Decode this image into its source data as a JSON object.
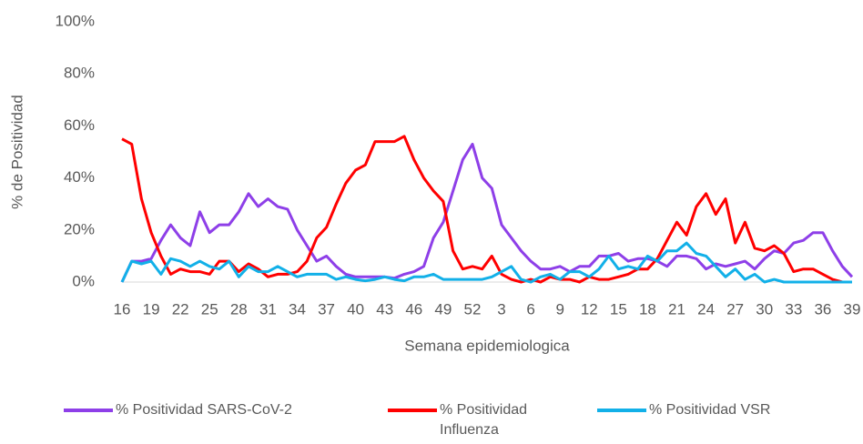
{
  "chart_data": {
    "type": "line",
    "y_label": "% de Positividad",
    "x_label": "Semana epidemiologica",
    "categories": [
      "16",
      null,
      null,
      "19",
      null,
      null,
      "22",
      null,
      null,
      "25",
      null,
      null,
      "28",
      null,
      null,
      "31",
      null,
      null,
      "34",
      null,
      null,
      "37",
      null,
      null,
      "40",
      null,
      null,
      "43",
      null,
      null,
      "46",
      null,
      null,
      "49",
      null,
      null,
      "52",
      null,
      null,
      "3",
      null,
      null,
      "6",
      null,
      null,
      "9",
      null,
      null,
      "12",
      null,
      null,
      "15",
      null,
      null,
      "18",
      null,
      null,
      "21",
      null,
      null,
      "24",
      null,
      null,
      "27",
      null,
      null,
      "30",
      null,
      null,
      "33",
      null,
      null,
      "36",
      null,
      null,
      "39"
    ],
    "series": [
      {
        "name": "% Positividad SARS-CoV-2",
        "color": "#8e3fe8",
        "values": [
          0,
          8,
          8,
          9,
          16,
          22,
          17,
          14,
          27,
          19,
          22,
          22,
          27,
          34,
          29,
          32,
          29,
          28,
          20,
          14,
          8,
          10,
          6,
          3,
          2,
          2,
          2,
          2,
          1.5,
          3,
          4,
          6,
          17,
          23,
          35,
          47,
          53,
          40,
          36,
          22,
          17,
          12,
          8,
          5,
          5,
          6,
          4,
          6,
          6,
          10,
          10,
          11,
          8,
          9,
          9,
          8,
          6,
          10,
          10,
          9,
          5,
          7,
          6,
          7,
          8,
          5,
          9,
          12,
          11,
          15,
          16,
          19,
          19,
          12,
          6,
          2
        ]
      },
      {
        "name": "% Positividad Influenza",
        "color": "#ff0000",
        "values": [
          55,
          53,
          32,
          19,
          10,
          3,
          5,
          4,
          4,
          3,
          8,
          8,
          4,
          7,
          5,
          2,
          3,
          3,
          4,
          8,
          17,
          21,
          30,
          38,
          43,
          45,
          54,
          54,
          54,
          56,
          47,
          40,
          35,
          31,
          12,
          5,
          6,
          5,
          10,
          3,
          1,
          0,
          1,
          0,
          2,
          1,
          1,
          0,
          2,
          1,
          1,
          2,
          3,
          5,
          5,
          9,
          16,
          23,
          18,
          29,
          34,
          26,
          32,
          15,
          23,
          13,
          12,
          14,
          11,
          4,
          5,
          5,
          3,
          1,
          0,
          0
        ]
      },
      {
        "name": "% Positividad VSR",
        "color": "#12b0e8",
        "values": [
          0,
          8,
          7,
          8,
          3,
          9,
          8,
          6,
          8,
          6,
          5,
          8,
          2,
          6,
          4,
          4,
          6,
          4,
          2,
          3,
          3,
          3,
          1,
          2,
          1,
          0.5,
          1,
          2,
          1,
          0.5,
          2,
          2,
          3,
          1,
          1,
          1,
          1,
          1,
          2,
          4,
          6,
          1,
          0,
          2,
          3,
          1,
          4,
          4,
          2,
          5,
          10,
          5,
          6,
          5,
          10,
          8,
          12,
          12,
          15,
          11,
          10,
          6,
          2,
          5,
          1,
          3,
          0,
          1,
          0,
          0,
          0,
          0,
          0,
          0,
          0,
          0
        ]
      }
    ],
    "ylim": [
      0,
      100
    ],
    "yticks": [
      {
        "value": 0,
        "label": "0%"
      },
      {
        "value": 20,
        "label": "20%"
      },
      {
        "value": 40,
        "label": "40%"
      },
      {
        "value": 60,
        "label": "60%"
      },
      {
        "value": 80,
        "label": "80%"
      },
      {
        "value": 100,
        "label": "100%"
      }
    ],
    "grid": false,
    "legend": "bottom"
  }
}
